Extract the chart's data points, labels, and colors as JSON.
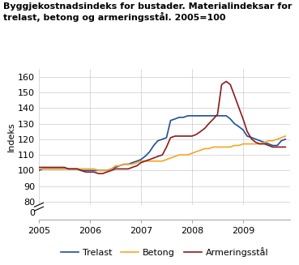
{
  "title": "Byggjekostnadsindeks for bustader. Materialindeksar for\ntrelast, betong og armeringsstål. 2005=100",
  "ylabel": "Indeks",
  "ylim": [
    0,
    165
  ],
  "yticks": [
    0,
    80,
    90,
    100,
    110,
    120,
    130,
    140,
    150,
    160
  ],
  "xtick_labels": [
    "2005",
    "2006",
    "2007",
    "2008",
    "2009"
  ],
  "legend_labels": [
    "Trelast",
    "Betong",
    "Armeringsstål"
  ],
  "line_colors": [
    "#1f4e9b",
    "#f5a623",
    "#8b1a1a"
  ],
  "trelast": {
    "x": [
      2005.0,
      2005.08,
      2005.17,
      2005.25,
      2005.33,
      2005.42,
      2005.5,
      2005.58,
      2005.67,
      2005.75,
      2005.83,
      2005.92,
      2006.0,
      2006.08,
      2006.17,
      2006.25,
      2006.33,
      2006.42,
      2006.5,
      2006.58,
      2006.67,
      2006.75,
      2006.83,
      2006.92,
      2007.0,
      2007.08,
      2007.17,
      2007.25,
      2007.33,
      2007.42,
      2007.5,
      2007.58,
      2007.67,
      2007.75,
      2007.83,
      2007.92,
      2008.0,
      2008.08,
      2008.17,
      2008.25,
      2008.33,
      2008.42,
      2008.5,
      2008.58,
      2008.67,
      2008.75,
      2008.83,
      2008.92,
      2009.0,
      2009.08,
      2009.17,
      2009.25,
      2009.33,
      2009.42,
      2009.5,
      2009.58,
      2009.67,
      2009.75,
      2009.83
    ],
    "y": [
      100,
      101,
      101,
      101,
      101,
      101,
      101,
      101,
      101,
      101,
      100,
      100,
      100,
      100,
      100,
      100,
      100,
      101,
      102,
      103,
      104,
      104,
      105,
      106,
      107,
      109,
      112,
      116,
      119,
      120,
      121,
      132,
      133,
      134,
      134,
      135,
      135,
      135,
      135,
      135,
      135,
      135,
      135,
      135,
      135,
      133,
      130,
      128,
      126,
      122,
      121,
      120,
      119,
      118,
      117,
      116,
      116,
      119,
      120
    ]
  },
  "betong": {
    "x": [
      2005.0,
      2005.08,
      2005.17,
      2005.25,
      2005.33,
      2005.42,
      2005.5,
      2005.58,
      2005.67,
      2005.75,
      2005.83,
      2005.92,
      2006.0,
      2006.08,
      2006.17,
      2006.25,
      2006.33,
      2006.42,
      2006.5,
      2006.58,
      2006.67,
      2006.75,
      2006.83,
      2006.92,
      2007.0,
      2007.08,
      2007.17,
      2007.25,
      2007.33,
      2007.42,
      2007.5,
      2007.58,
      2007.67,
      2007.75,
      2007.83,
      2007.92,
      2008.0,
      2008.08,
      2008.17,
      2008.25,
      2008.33,
      2008.42,
      2008.5,
      2008.58,
      2008.67,
      2008.75,
      2008.83,
      2008.92,
      2009.0,
      2009.08,
      2009.17,
      2009.25,
      2009.33,
      2009.42,
      2009.5,
      2009.58,
      2009.67,
      2009.75,
      2009.83
    ],
    "y": [
      101,
      101,
      101,
      101,
      101,
      101,
      101,
      101,
      101,
      101,
      101,
      101,
      101,
      101,
      100,
      100,
      100,
      101,
      103,
      103,
      104,
      104,
      104,
      105,
      106,
      106,
      106,
      106,
      106,
      106,
      107,
      108,
      109,
      110,
      110,
      110,
      111,
      112,
      113,
      114,
      114,
      115,
      115,
      115,
      115,
      115,
      116,
      116,
      117,
      117,
      117,
      117,
      117,
      118,
      119,
      119,
      120,
      121,
      122
    ]
  },
  "armeringstal": {
    "x": [
      2005.0,
      2005.08,
      2005.17,
      2005.25,
      2005.33,
      2005.42,
      2005.5,
      2005.58,
      2005.67,
      2005.75,
      2005.83,
      2005.92,
      2006.0,
      2006.08,
      2006.17,
      2006.25,
      2006.33,
      2006.42,
      2006.5,
      2006.58,
      2006.67,
      2006.75,
      2006.83,
      2006.92,
      2007.0,
      2007.08,
      2007.17,
      2007.25,
      2007.33,
      2007.42,
      2007.5,
      2007.58,
      2007.67,
      2007.75,
      2007.83,
      2007.92,
      2008.0,
      2008.08,
      2008.17,
      2008.25,
      2008.33,
      2008.42,
      2008.5,
      2008.58,
      2008.67,
      2008.75,
      2008.83,
      2008.92,
      2009.0,
      2009.08,
      2009.17,
      2009.25,
      2009.33,
      2009.42,
      2009.5,
      2009.58,
      2009.67,
      2009.75,
      2009.83
    ],
    "y": [
      102,
      102,
      102,
      102,
      102,
      102,
      102,
      101,
      101,
      101,
      100,
      99,
      99,
      99,
      98,
      98,
      99,
      100,
      101,
      101,
      101,
      101,
      102,
      103,
      105,
      106,
      107,
      108,
      109,
      110,
      115,
      121,
      122,
      122,
      122,
      122,
      122,
      123,
      125,
      127,
      130,
      133,
      136,
      155,
      157,
      155,
      148,
      140,
      133,
      125,
      120,
      118,
      117,
      117,
      116,
      115,
      115,
      115,
      115
    ]
  },
  "grid_color": "#cccccc",
  "background_color": "#ffffff",
  "title_fontsize": 8,
  "axis_fontsize": 8,
  "legend_fontsize": 8
}
